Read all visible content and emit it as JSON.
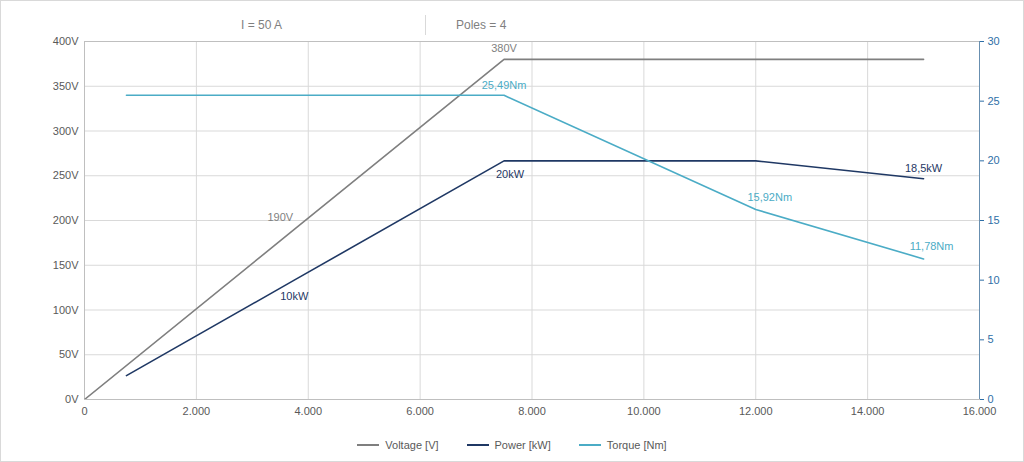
{
  "chart_data": {
    "type": "line",
    "annotations": [
      "I = 50 A",
      "Poles = 4"
    ],
    "xlim": [
      0,
      16000
    ],
    "xticks": [
      0,
      {
        "value": 2000,
        "label": "2.000"
      },
      {
        "value": 4000,
        "label": "4.000"
      },
      {
        "value": 6000,
        "label": "6.000"
      },
      {
        "value": 8000,
        "label": "8.000"
      },
      {
        "value": 10000,
        "label": "10.000"
      },
      {
        "value": 12000,
        "label": "12.000"
      },
      {
        "value": 14000,
        "label": "14.000"
      },
      {
        "value": 16000,
        "label": "16.000"
      }
    ],
    "ylim": [
      0,
      400
    ],
    "yticks": [
      {
        "value": 0,
        "label": "0V"
      },
      {
        "value": 50,
        "label": "50V"
      },
      {
        "value": 100,
        "label": "100V"
      },
      {
        "value": 150,
        "label": "150V"
      },
      {
        "value": 200,
        "label": "200V"
      },
      {
        "value": 250,
        "label": "250V"
      },
      {
        "value": 300,
        "label": "300V"
      },
      {
        "value": 350,
        "label": "350V"
      },
      {
        "value": 400,
        "label": "400V"
      }
    ],
    "y2lim": [
      0,
      30
    ],
    "y2ticks": [
      0,
      5,
      10,
      15,
      20,
      25,
      30
    ],
    "grid": true,
    "legend": "bottom",
    "data_labels": true,
    "series": [
      {
        "name": "Voltage [V]",
        "color": "#7f7f7f",
        "x": [
          0,
          3750,
          7500,
          15000
        ],
        "values": [
          0,
          190,
          380,
          380
        ],
        "value_labels": [
          null,
          "190V",
          "380V",
          null
        ]
      },
      {
        "name": "Power [kW]",
        "color": "#1f3864",
        "axis": "y2",
        "x": [
          750,
          3750,
          7500,
          12000,
          15000
        ],
        "values": [
          2,
          10,
          20,
          20,
          18.5
        ],
        "value_labels": [
          null,
          "10kW",
          "20kW",
          null,
          "18,5kW"
        ]
      },
      {
        "name": "Torque [Nm]",
        "color": "#4bacc6",
        "axis": "y2",
        "x": [
          750,
          7500,
          12000,
          15000
        ],
        "values": [
          25.49,
          25.49,
          15.92,
          11.78
        ],
        "value_labels": [
          null,
          "25,49Nm",
          "15,92Nm",
          "11,78Nm"
        ]
      }
    ]
  }
}
